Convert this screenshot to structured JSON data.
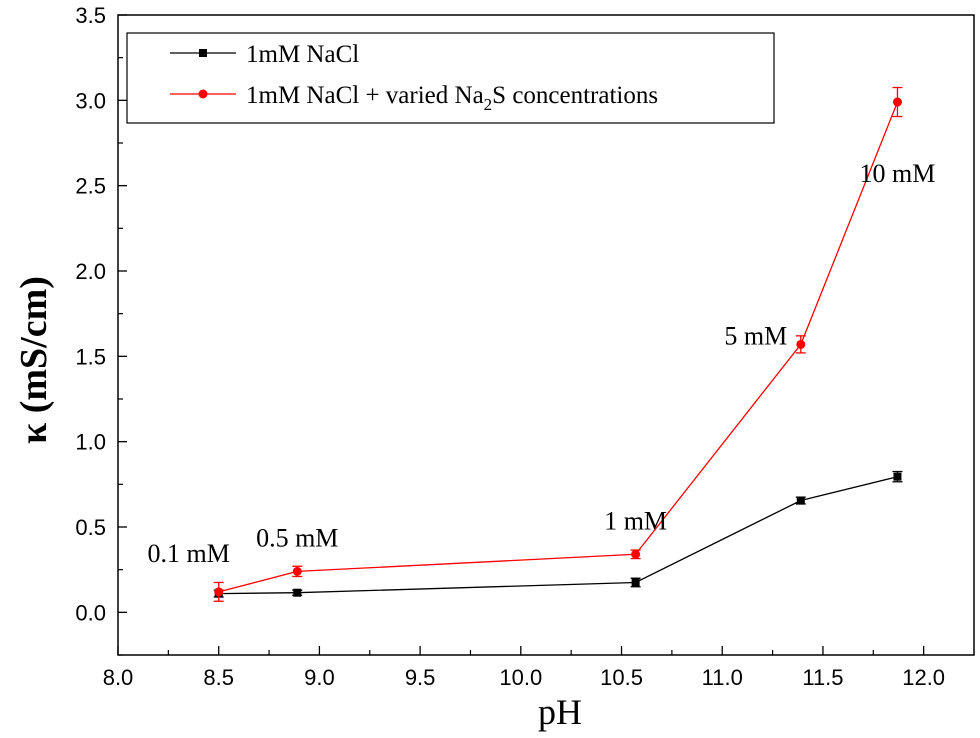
{
  "chart_data": {
    "type": "line",
    "xlabel": "pH",
    "ylabel": "κ (mS/cm)",
    "xlim": [
      8.0,
      12.25
    ],
    "ylim": [
      -0.25,
      3.5
    ],
    "x_ticks": [
      "8.0",
      "8.5",
      "9.0",
      "9.5",
      "10.0",
      "10.5",
      "11.0",
      "11.5",
      "12.0"
    ],
    "y_ticks": [
      "0.0",
      "0.5",
      "1.0",
      "1.5",
      "2.0",
      "2.5",
      "3.0",
      "3.5"
    ],
    "legend_position": "top-left",
    "series": [
      {
        "name": "1mM NaCl",
        "legend_label": {
          "main": "1mM NaCl",
          "sub": "",
          "tail": ""
        },
        "color": "#000000",
        "marker": "square",
        "points": [
          {
            "x": 8.5,
            "y": 0.11,
            "err": 0.02
          },
          {
            "x": 8.89,
            "y": 0.115,
            "err": 0.015
          },
          {
            "x": 10.57,
            "y": 0.175,
            "err": 0.025
          },
          {
            "x": 11.39,
            "y": 0.655,
            "err": 0.02
          },
          {
            "x": 11.87,
            "y": 0.795,
            "err": 0.03
          }
        ]
      },
      {
        "name": "1mM NaCl +  varied Na2S concentrations",
        "legend_label": {
          "main": "1mM NaCl +  varied Na",
          "sub": "2",
          "tail": "S concentrations"
        },
        "color": "#ff0000",
        "marker": "circle",
        "points": [
          {
            "x": 8.5,
            "y": 0.12,
            "err": 0.055
          },
          {
            "x": 8.89,
            "y": 0.24,
            "err": 0.03
          },
          {
            "x": 10.57,
            "y": 0.34,
            "err": 0.025
          },
          {
            "x": 11.39,
            "y": 1.57,
            "err": 0.05
          },
          {
            "x": 11.87,
            "y": 2.99,
            "err": 0.085
          }
        ]
      }
    ],
    "annotations": [
      {
        "text": "0.1 mM",
        "x": 8.5,
        "y": 0.12
      },
      {
        "text": "0.5 mM",
        "x": 8.89,
        "y": 0.24
      },
      {
        "text": "1 mM",
        "x": 10.57,
        "y": 0.34
      },
      {
        "text": "5 mM",
        "x": 11.39,
        "y": 1.57
      },
      {
        "text": "10 mM",
        "x": 11.87,
        "y": 2.99
      }
    ]
  }
}
